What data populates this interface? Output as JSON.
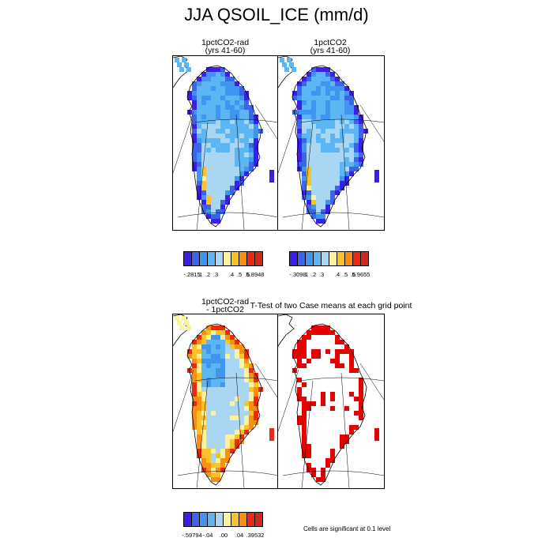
{
  "title": "JJA QSOIL_ICE (mm/d)",
  "panels": {
    "p1": {
      "title_line1": "1pctCO2-rad",
      "title_line2": "(yrs 41-60)"
    },
    "p2": {
      "title_line1": "1pctCO2",
      "title_line2": "(yrs 41-60)"
    },
    "p3": {
      "title_line1": "1pctCO2-rad",
      "title_line2": "- 1pctCO2"
    },
    "p4": {
      "title_line1": "T-Test of two Case means at each grid point"
    }
  },
  "colorbars": {
    "cb1": {
      "colors": [
        "#3b1fe8",
        "#3c64e8",
        "#3f95ef",
        "#5cb6f4",
        "#a8d6f3",
        "#fdf29a",
        "#f9c227",
        "#f88f11",
        "#ea2a0f",
        "#d2271d"
      ],
      "labels": [
        "-.2815",
        ".1",
        ".2",
        ".3",
        ".4",
        ".5",
        ".6",
        "5.8948"
      ]
    },
    "cb2": {
      "colors": [
        "#3b1fe8",
        "#3c64e8",
        "#3f95ef",
        "#5cb6f4",
        "#a8d6f3",
        "#fdf29a",
        "#f9c227",
        "#f88f11",
        "#ea2a0f",
        "#d2271d"
      ],
      "labels": [
        "-.3098",
        ".1",
        ".2",
        ".3",
        ".4",
        ".5",
        ".6",
        "5.9655"
      ]
    },
    "cb3": {
      "colors": [
        "#3b1fe8",
        "#3c64e8",
        "#3f95ef",
        "#5cb6f4",
        "#a8d6f3",
        "#fdf29a",
        "#f9c227",
        "#f88f11",
        "#ea2a0f",
        "#d2271d"
      ],
      "labels": [
        "-.59794",
        "-.04",
        ".00",
        ".04",
        ".39532"
      ]
    }
  },
  "significance_note": "Cells are significant at 0.1 level",
  "colors": {
    "ice_high": "#5cb6f4",
    "ice_mid": "#a8d6f3",
    "significant": "#e60000"
  }
}
